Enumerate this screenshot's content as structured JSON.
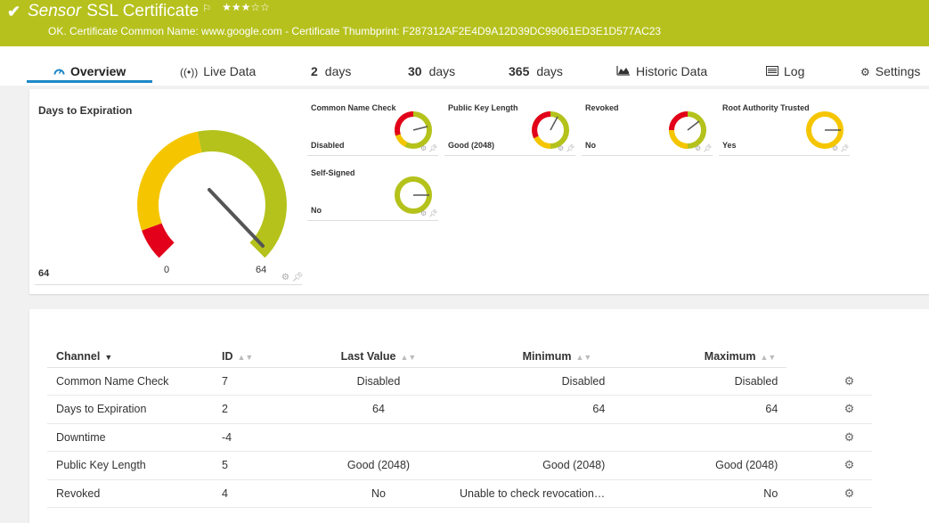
{
  "header": {
    "check_icon": "check-icon",
    "sensor_kind": "Sensor",
    "sensor_name": "SSL Certificate",
    "flag_icon": "flag-icon",
    "stars": "★★★☆☆",
    "status": "OK. Certificate Common Name: www.google.com - Certificate Thumbprint: F287312AF2E4D9A12D39DC99061ED3E1D577AC23",
    "color": "#b6c11d"
  },
  "tabs": {
    "overview": "Overview",
    "live_data": "Live Data",
    "d2_num": "2",
    "d2_unit": "days",
    "d30_num": "30",
    "d30_unit": "days",
    "d365_num": "365",
    "d365_unit": "days",
    "historic": "Historic Data",
    "log": "Log",
    "settings": "Settings"
  },
  "big_gauge": {
    "title": "Days to Expiration",
    "value": "64",
    "min_label": "0",
    "max_label": "64"
  },
  "mini_gauges": [
    {
      "title": "Common Name Check",
      "value": "Disabled"
    },
    {
      "title": "Public Key Length",
      "value": "Good (2048)"
    },
    {
      "title": "Revoked",
      "value": "No"
    },
    {
      "title": "Root Authority Trusted",
      "value": "Yes"
    },
    {
      "title": "Self-Signed",
      "value": "No"
    }
  ],
  "table": {
    "headers": {
      "channel": "Channel",
      "id": "ID",
      "last_value": "Last Value",
      "minimum": "Minimum",
      "maximum": "Maximum"
    },
    "rows": [
      {
        "channel": "Common Name Check",
        "id": "7",
        "last": "Disabled",
        "min": "Disabled",
        "max": "Disabled"
      },
      {
        "channel": "Days to Expiration",
        "id": "2",
        "last": "64",
        "min": "64",
        "max": "64"
      },
      {
        "channel": "Downtime",
        "id": "-4",
        "last": "",
        "min": "",
        "max": ""
      },
      {
        "channel": "Public Key Length",
        "id": "5",
        "last": "Good (2048)",
        "min": "Good (2048)",
        "max": "Good (2048)"
      },
      {
        "channel": "Revoked",
        "id": "4",
        "last": "No",
        "min": "Unable to check revocation…",
        "max": "No"
      }
    ]
  }
}
